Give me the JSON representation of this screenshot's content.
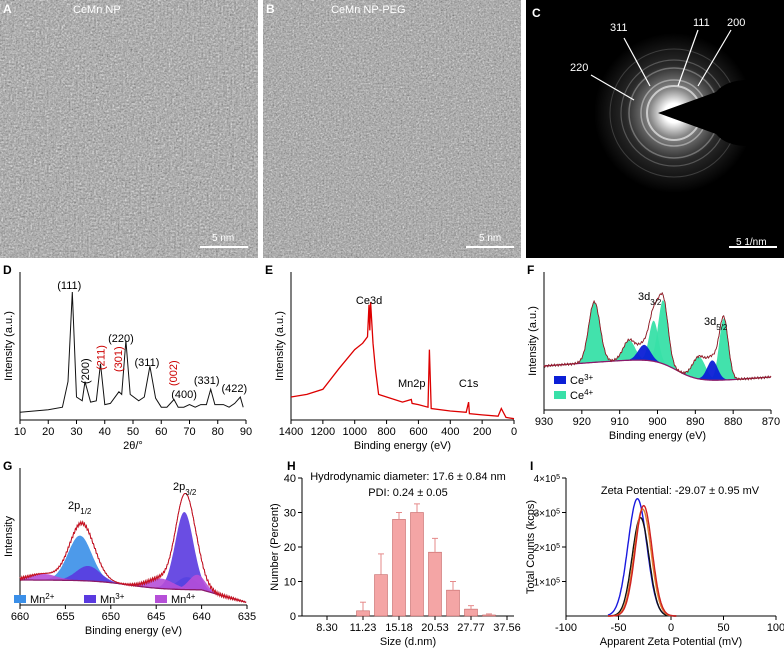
{
  "panels": {
    "A": {
      "letter": "A",
      "label": "CeMn NP",
      "scale": "5 nm"
    },
    "B": {
      "letter": "B",
      "label": "CeMn NP-PEG",
      "scale": "5 nm"
    },
    "C": {
      "letter": "C",
      "rings": [
        "311",
        "111",
        "200",
        "220"
      ],
      "scale": "5 1/nm"
    },
    "D": {
      "letter": "D"
    },
    "E": {
      "letter": "E"
    },
    "F": {
      "letter": "F"
    },
    "G": {
      "letter": "G"
    },
    "H": {
      "letter": "H"
    },
    "I": {
      "letter": "I"
    }
  },
  "chart_data": [
    {
      "id": "D",
      "type": "line",
      "xlabel": "2θ/°",
      "ylabel": "Intensity (a.u.)",
      "xlim": [
        10,
        90
      ],
      "xticks": [
        "10",
        "20",
        "30",
        "40",
        "50",
        "60",
        "70",
        "80",
        "90"
      ],
      "x": [
        10,
        15,
        20,
        25,
        27,
        28.5,
        30,
        32,
        33,
        35,
        37,
        38.5,
        40,
        42,
        45,
        46,
        47.5,
        49,
        52,
        54,
        56,
        58,
        60,
        62,
        64.5,
        66,
        68,
        70,
        72,
        74,
        76,
        77.5,
        79,
        82,
        84,
        86,
        88,
        89
      ],
      "y": [
        0.06,
        0.07,
        0.08,
        0.1,
        0.3,
        1.0,
        0.18,
        0.15,
        0.3,
        0.14,
        0.15,
        0.44,
        0.12,
        0.13,
        0.22,
        0.2,
        0.62,
        0.2,
        0.15,
        0.18,
        0.42,
        0.17,
        0.1,
        0.1,
        0.16,
        0.1,
        0.1,
        0.12,
        0.1,
        0.12,
        0.12,
        0.24,
        0.12,
        0.12,
        0.1,
        0.13,
        0.18,
        0.1
      ],
      "peaks": [
        {
          "label": "(111)",
          "x": 28.5,
          "color": "#000000"
        },
        {
          "label": "(200)",
          "x": 33,
          "color": "#000000"
        },
        {
          "label": "(211)",
          "x": 38.5,
          "color": "#cc0000"
        },
        {
          "label": "(301)",
          "x": 45,
          "color": "#cc0000"
        },
        {
          "label": "(220)",
          "x": 47.5,
          "color": "#000000"
        },
        {
          "label": "(311)",
          "x": 56,
          "color": "#000000"
        },
        {
          "label": "(002)",
          "x": 64.5,
          "color": "#cc0000"
        },
        {
          "label": "(400)",
          "x": 69.5,
          "color": "#000000"
        },
        {
          "label": "(331)",
          "x": 77.5,
          "color": "#000000"
        },
        {
          "label": "(422)",
          "x": 88,
          "color": "#000000"
        }
      ]
    },
    {
      "id": "E",
      "type": "line",
      "xlabel": "Binding energy (eV)",
      "ylabel": "Intensity (a.u.)",
      "xlim": [
        1400,
        0
      ],
      "xticks": [
        "1400",
        "1200",
        "1000",
        "800",
        "600",
        "400",
        "200",
        "0"
      ],
      "x": [
        1400,
        1300,
        1200,
        1100,
        1000,
        950,
        920,
        910,
        905,
        900,
        885,
        870,
        850,
        800,
        700,
        645,
        640,
        600,
        540,
        531,
        520,
        400,
        300,
        285,
        280,
        200,
        100,
        80,
        50,
        0
      ],
      "y": [
        0.18,
        0.2,
        0.24,
        0.4,
        0.55,
        0.6,
        0.65,
        0.9,
        0.7,
        0.92,
        0.6,
        0.4,
        0.2,
        0.18,
        0.14,
        0.16,
        0.13,
        0.12,
        0.1,
        0.55,
        0.09,
        0.07,
        0.06,
        0.14,
        0.05,
        0.04,
        0.03,
        0.09,
        0.02,
        0.01
      ],
      "labels": [
        {
          "text": "Ce3d",
          "x": 910
        },
        {
          "text": "Mn2p",
          "x": 642
        },
        {
          "text": "C1s",
          "x": 285
        }
      ],
      "color": "#dd0000"
    },
    {
      "id": "F",
      "type": "area",
      "xlabel": "Binding energy (eV)",
      "ylabel": "Intensity (a.u.)",
      "xlim": [
        930,
        870
      ],
      "xticks": [
        "930",
        "920",
        "910",
        "900",
        "890",
        "880",
        "870"
      ],
      "labels": [
        "3d3/2",
        "3d5/2"
      ],
      "legend": [
        "Ce3+",
        "Ce4+"
      ],
      "colors": {
        "Ce3+": "#0b1fd6",
        "Ce4+": "#38e0a8",
        "envelope": "#cc1122",
        "baseline": "#8a1a6a"
      }
    },
    {
      "id": "G",
      "type": "area",
      "xlabel": "Binding energy (eV)",
      "ylabel": "Intensity",
      "xlim": [
        660,
        635
      ],
      "xticks": [
        "660",
        "655",
        "650",
        "645",
        "640",
        "635"
      ],
      "labels": [
        "2p1/2",
        "2p3/2"
      ],
      "legend": [
        "Mn2+",
        "Mn3+",
        "Mn4+"
      ],
      "colors": {
        "Mn2+": "#3a8fe8",
        "Mn3+": "#5a3ae0",
        "Mn4+": "#b64fd8",
        "envelope": "#cc1122",
        "baseline": "#8a1a6a"
      }
    },
    {
      "id": "H",
      "type": "bar",
      "title": "Hydrodynamic diameter: 17.6 ± 0.84 nm",
      "subtitle": "PDI: 0.24 ± 0.05",
      "xlabel": "Size (d.nm)",
      "ylabel": "Number (Percent)",
      "xticks": [
        "8.30",
        "11.23",
        "15.18",
        "20.53",
        "27.77",
        "37.56"
      ],
      "ylim": [
        0,
        40
      ],
      "yticks": [
        "0",
        "10",
        "20",
        "30",
        "40"
      ],
      "values": [
        1.5,
        12,
        28,
        30,
        18.5,
        7.5,
        2,
        0.3
      ],
      "errors": [
        2.5,
        6,
        2,
        2.5,
        4,
        2.5,
        1,
        0.3
      ],
      "color": "#f4a5a5"
    },
    {
      "id": "I",
      "type": "line",
      "title": "Zeta Potential: -29.07 ± 0.95 mV",
      "xlabel": "Apparent Zeta Potential (mV)",
      "ylabel": "Total Counts (kcps)",
      "xlim": [
        -100,
        100
      ],
      "xticks": [
        "-100",
        "-50",
        "0",
        "50",
        "100"
      ],
      "ylim": [
        0,
        400000
      ],
      "yticks": [
        {
          "m": "1×10",
          "e": "5"
        },
        {
          "m": "2×10",
          "e": "5"
        },
        {
          "m": "3×10",
          "e": "5"
        },
        {
          "m": "4×10",
          "e": "5"
        }
      ],
      "series_colors": [
        "#1a1adf",
        "#111111",
        "#e08030",
        "#d02020"
      ]
    }
  ]
}
